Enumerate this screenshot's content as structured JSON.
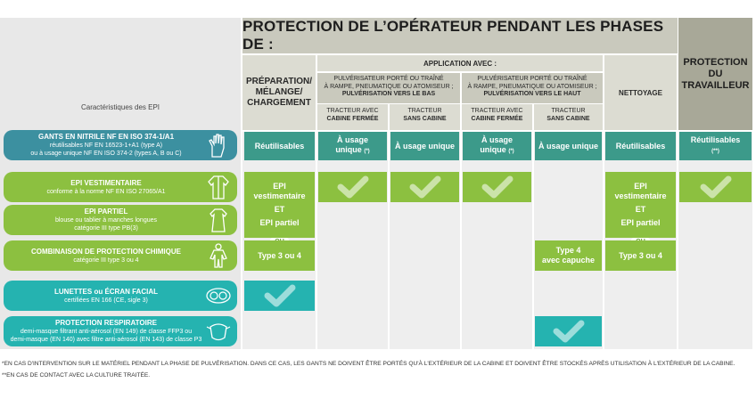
{
  "header": {
    "title": "PROTECTION DE L’OPÉRATEUR PENDANT LES PHASES DE :",
    "protection_travailleur": [
      "PROTECTION",
      "DU",
      "TRAVAILLEUR"
    ],
    "preparation": [
      "PRÉPARATION/",
      "MÉLANGE/",
      "CHARGEMENT"
    ],
    "application": "APPLICATION AVEC :",
    "pulv_bas": [
      "PULVÉRISATEUR PORTÉ OU TRAÎNÉ",
      "À RAMPE, PNEUMATIQUE OU ATOMISEUR ;",
      "PULVÉRISATION VERS LE BAS"
    ],
    "pulv_haut": [
      "PULVÉRISATEUR PORTÉ OU TRAÎNÉ",
      "À RAMPE, PNEUMATIQUE OU ATOMISEUR ;",
      "PULVÉRISATION VERS LE HAUT"
    ],
    "tracteur_fermee": [
      "TRACTEUR AVEC",
      "CABINE FERMÉE"
    ],
    "tracteur_sans": [
      "TRACTEUR",
      "SANS CABINE"
    ],
    "nettoyage": "NETTOYAGE"
  },
  "epi_label": "Caractéristiques des EPI",
  "rows": {
    "gants": {
      "title": "GANTS EN NITRILE NF EN ISO 374-1/A1",
      "line2": "réutilisables NF EN 16523-1+A1 (type A)",
      "line3": "ou à usage unique NF EN ISO 374-2 (types A, B ou C)"
    },
    "epi_vest": {
      "title": "EPI VESTIMENTAIRE",
      "line2": "conforme à la norme NF EN ISO 27065/A1"
    },
    "epi_partiel": {
      "title": "EPI PARTIEL",
      "line2": "blouse ou tablier à manches longues",
      "line3": "catégorie III type PB(3)"
    },
    "combinaison": {
      "title": "COMBINAISON DE PROTECTION CHIMIQUE",
      "line2": "catégorie III type 3 ou 4"
    },
    "lunettes": {
      "title": "LUNETTES ou ÉCRAN FACIAL",
      "line2": "certifiées EN 166 (CE, sigle 3)"
    },
    "respiratoire": {
      "title": "PROTECTION RESPIRATOIRE",
      "line2": "demi-masque filtrant anti-aérosol (EN 149) de classe FFP3 ou",
      "line3": "demi-masque (EN 140) avec filtre anti-aérosol (EN 143) de classe P3"
    }
  },
  "cells": {
    "reutilisables": "Réutilisables",
    "usage_unique": "À usage unique",
    "usage": "À usage",
    "unique": "unique",
    "star1": "(*)",
    "star2": "(**)",
    "epi_vestimentaire": [
      "EPI",
      "vestimentaire"
    ],
    "et": "ET",
    "epi_partiel": "EPI partiel",
    "ou": "OU",
    "type34": "Type 3 ou 4",
    "type4": [
      "Type 4",
      "avec capuche"
    ]
  },
  "footnotes": [
    "*EN CAS D'INTERVENTION SUR LE MATÉRIEL PENDANT LA PHASE DE PULVÉRISATION. DANS CE CAS, LES GANTS NE DOIVENT ÊTRE PORTÉS QU'À L'EXTÉRIEUR DE LA CABINE ET DOIVENT ÊTRE STOCKÉS APRÈS UTILISATION À L'EXTÉRIEUR DE LA CABINE.",
    "**EN CAS DE CONTACT AVEC LA CULTURE TRAITÉE."
  ],
  "colors": {
    "blue": "#3c90a0",
    "green": "#8cc040",
    "teal": "#25b3b0",
    "header_dark": "#a8a898",
    "header_mid": "#c9c9bd"
  },
  "icons": [
    "gloves-icon",
    "coat-icon",
    "apron-icon",
    "suit-icon",
    "goggles-icon",
    "mask-icon",
    "check-icon"
  ]
}
